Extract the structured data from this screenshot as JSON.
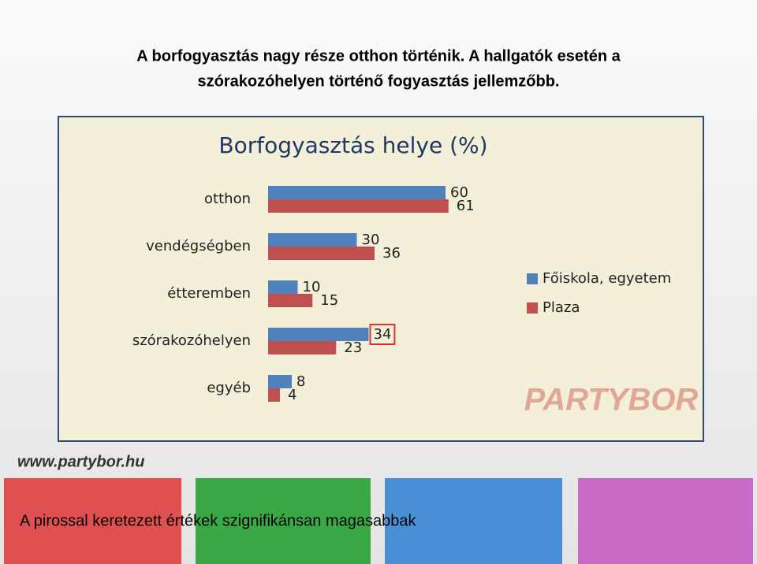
{
  "slide_title": [
    "A borfogyasztás nagy része otthon történik. A hallgatók esetén a",
    "szórakozóhelyen történő fogyasztás jellemzőbb."
  ],
  "chart_data": {
    "type": "hbar",
    "title": "Borfogyasztás helye (%)",
    "categories": [
      "otthon",
      "vendégségben",
      "étteremben",
      "szórakozóhelyen",
      "egyéb"
    ],
    "series": [
      {
        "name": "Főiskola, egyetem",
        "color": "#4f81bd",
        "values": [
          60,
          30,
          10,
          34,
          8
        ]
      },
      {
        "name": "Plaza",
        "color": "#c0504d",
        "values": [
          61,
          36,
          15,
          23,
          4
        ]
      }
    ],
    "xlim": [
      0,
      80
    ],
    "legend": "right",
    "highlighted": {
      "series": 0,
      "index": 3
    }
  },
  "logo": "PARTYBOR",
  "website": "www.partybor.hu",
  "footnote": "A pirossal keretezett értékek szignifikánsan magasabbak"
}
